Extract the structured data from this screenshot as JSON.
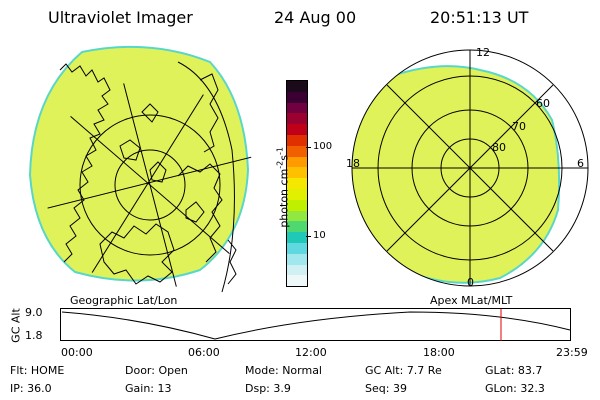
{
  "header": {
    "title": "Ultraviolet Imager",
    "date": "24 Aug 00",
    "time": "20:51:13 UT"
  },
  "left_panel": {
    "caption": "Geographic Lat/Lon"
  },
  "right_panel": {
    "caption": "Apex MLat/MLT",
    "mlt_labels": [
      "12",
      "18",
      "6",
      "0"
    ],
    "mlat_labels": [
      "60",
      "70",
      "80"
    ]
  },
  "colorbar": {
    "label": "photon cm",
    "exp1": "-2",
    "mid": "s",
    "exp2": "-1",
    "ticks": [
      "100",
      "10"
    ],
    "colors": [
      "#1a0a1a",
      "#3a0033",
      "#700040",
      "#9a0030",
      "#c00018",
      "#e03000",
      "#f06000",
      "#ff9a00",
      "#ffc000",
      "#f5e800",
      "#e0f000",
      "#c0f000",
      "#90e840",
      "#50d870",
      "#20c8b8",
      "#60d8e0",
      "#a0e8ee",
      "#d0f0f3",
      "#eef8f8"
    ]
  },
  "altitude_plot": {
    "ylabel": "GC Alt",
    "yticks": [
      "9.0",
      "1.8"
    ],
    "xticks": [
      "00:00",
      "06:00",
      "12:00",
      "18:00",
      "23:59"
    ]
  },
  "footer": {
    "row1": [
      {
        "label": "Flt:",
        "value": "HOME"
      },
      {
        "label": "Door:",
        "value": "Open"
      },
      {
        "label": "Mode:",
        "value": "Normal"
      },
      {
        "label": "GC Alt:",
        "value": "7.7 Re"
      },
      {
        "label": "GLat:",
        "value": "83.7"
      }
    ],
    "row2": [
      {
        "label": "IP:",
        "value": "36.0"
      },
      {
        "label": "Gain:",
        "value": "13"
      },
      {
        "label": "Dsp:",
        "value": "3.9"
      },
      {
        "label": "Seq:",
        "value": "39"
      },
      {
        "label": "GLon:",
        "value": "32.3"
      }
    ]
  },
  "colors": {
    "fill": "#e0f25a",
    "edge": "#58d7c8",
    "marker": "#e00000"
  }
}
